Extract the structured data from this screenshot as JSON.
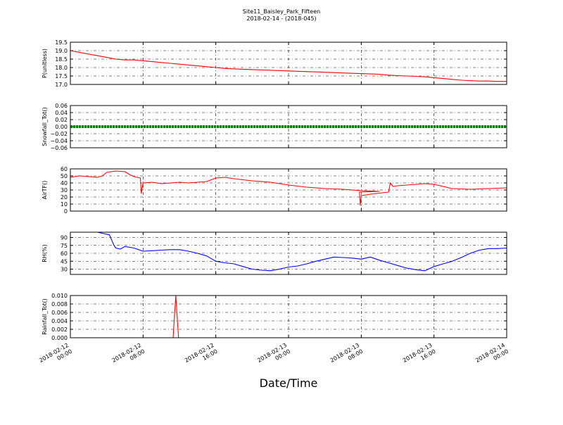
{
  "figure": {
    "title_line1": "Site11_Baisley_Park_Fifteen",
    "title_line2": "2018-02-14 - (2018-045)",
    "xlabel": "Date/Time",
    "x_ticks": [
      {
        "line1": "2018-02-12",
        "line2": "00:00"
      },
      {
        "line1": "2018-02-12",
        "line2": "08:00"
      },
      {
        "line1": "2018-02-12",
        "line2": "16:00"
      },
      {
        "line1": "2018-02-13",
        "line2": "00:00"
      },
      {
        "line1": "2018-02-13",
        "line2": "08:00"
      },
      {
        "line1": "2018-02-13",
        "line2": "16:00"
      },
      {
        "line1": "2018-02-14",
        "line2": "00:00"
      }
    ]
  },
  "chart_data": [
    {
      "type": "line",
      "ylabel": "P(unitless)",
      "ylim": [
        17.0,
        19.5
      ],
      "yticks": [
        "17.0",
        "17.5",
        "18.0",
        "18.5",
        "19.0",
        "19.5"
      ],
      "xlim_hours": [
        0,
        48
      ],
      "grid": true,
      "series": [
        {
          "color": "#ff0000",
          "x": [
            0,
            1,
            2,
            3,
            4,
            5,
            6,
            7,
            8,
            9,
            10,
            11,
            12,
            13,
            14,
            15,
            16,
            17,
            18,
            19,
            20,
            21,
            22,
            23,
            24,
            25,
            26,
            27,
            28,
            29,
            30,
            31,
            32,
            33,
            34,
            35,
            36,
            37,
            38,
            39,
            40,
            41,
            42,
            43,
            44,
            45,
            46,
            47,
            48
          ],
          "y": [
            19.0,
            18.9,
            18.8,
            18.7,
            18.6,
            18.5,
            18.45,
            18.45,
            18.4,
            18.35,
            18.3,
            18.25,
            18.2,
            18.15,
            18.1,
            18.05,
            18.0,
            17.95,
            17.92,
            17.9,
            17.88,
            17.86,
            17.84,
            17.82,
            17.8,
            17.78,
            17.76,
            17.74,
            17.72,
            17.7,
            17.68,
            17.66,
            17.64,
            17.62,
            17.6,
            17.55,
            17.52,
            17.5,
            17.48,
            17.45,
            17.4,
            17.35,
            17.3,
            17.25,
            17.22,
            17.2,
            17.2,
            17.18,
            17.18
          ]
        }
      ]
    },
    {
      "type": "line",
      "ylabel": "Snowfall_Tot()",
      "ylim": [
        -0.06,
        0.06
      ],
      "yticks": [
        "−0.06",
        "−0.04",
        "−0.02",
        "0.00",
        "0.02",
        "0.04",
        "0.06"
      ],
      "xlim_hours": [
        0,
        48
      ],
      "grid": true,
      "series": [
        {
          "color": "#008000",
          "x": [
            0,
            48
          ],
          "y": [
            0,
            0
          ]
        }
      ]
    },
    {
      "type": "line",
      "ylabel": "AirTF()",
      "ylim": [
        0,
        60
      ],
      "yticks": [
        "0",
        "10",
        "20",
        "30",
        "40",
        "50",
        "60"
      ],
      "xlim_hours": [
        0,
        48
      ],
      "grid": true,
      "series": [
        {
          "color": "#ff0000",
          "x": [
            0,
            1,
            2,
            3,
            3.5,
            4,
            5,
            6,
            6.5,
            7,
            7.7,
            7.8,
            8,
            9,
            10,
            11,
            12,
            13,
            14,
            15,
            16,
            17,
            18,
            20,
            22,
            24,
            26,
            28,
            30,
            32,
            34,
            31.8,
            31.9,
            32,
            33,
            35,
            35.2,
            35.5,
            36,
            37,
            38,
            39,
            40,
            42,
            44,
            46,
            48
          ],
          "y": [
            48,
            50,
            49,
            48,
            50,
            55,
            57,
            56,
            52,
            49,
            47,
            25,
            40,
            41,
            39,
            40,
            41,
            40,
            41,
            42,
            47,
            48,
            46,
            43,
            41,
            37,
            34,
            32,
            31,
            29,
            28,
            27,
            8,
            22,
            24,
            27,
            40,
            35,
            36,
            37,
            38,
            39,
            38,
            32,
            31,
            32,
            33
          ]
        }
      ]
    },
    {
      "type": "line",
      "ylabel": "RH(%)",
      "ylim": [
        20,
        100
      ],
      "yticks": [
        "30",
        "45",
        "60",
        "75",
        "90"
      ],
      "xlim_hours": [
        0,
        48
      ],
      "grid": true,
      "series": [
        {
          "color": "#0000ff",
          "x": [
            0,
            1,
            2,
            3,
            4.3,
            4.8,
            5,
            5.5,
            6,
            7,
            8,
            9,
            10,
            11,
            12,
            13,
            14,
            15,
            16,
            17,
            18,
            19,
            20,
            21,
            22,
            23,
            24,
            25,
            26,
            27,
            28,
            29,
            30,
            31,
            32,
            33,
            34,
            35,
            36,
            37,
            38,
            39,
            40,
            41,
            42,
            43,
            44,
            45,
            46,
            47,
            48
          ],
          "y": [
            100,
            100,
            100,
            100,
            95,
            75,
            70,
            68,
            73,
            70,
            64,
            65,
            66,
            67,
            67,
            64,
            60,
            55,
            45,
            42,
            40,
            35,
            30,
            28,
            27,
            30,
            34,
            36,
            40,
            45,
            49,
            53,
            52,
            51,
            49,
            53,
            47,
            42,
            37,
            32,
            29,
            27,
            35,
            40,
            45,
            52,
            60,
            66,
            69,
            69,
            70
          ]
        }
      ]
    },
    {
      "type": "line",
      "ylabel": "Rainfall_Tot()",
      "ylim": [
        0,
        0.01
      ],
      "yticks": [
        "0.000",
        "0.002",
        "0.004",
        "0.006",
        "0.008",
        "0.010"
      ],
      "xlim_hours": [
        0,
        48
      ],
      "grid": true,
      "series": [
        {
          "color": "#ff0000",
          "x": [
            0,
            11.3,
            11.6,
            11.9,
            48
          ],
          "y": [
            0,
            0,
            0.01,
            0,
            0
          ]
        }
      ]
    }
  ]
}
